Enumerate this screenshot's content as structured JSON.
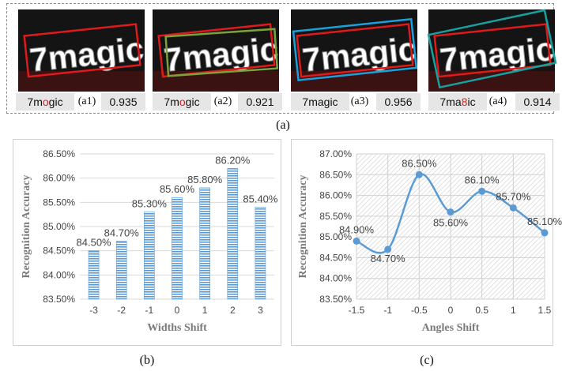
{
  "top_panel": {
    "items": [
      {
        "id": "(a1)",
        "pred_pre": "7m",
        "pred_err": "o",
        "pred_post": "gic",
        "score": "0.935"
      },
      {
        "id": "(a2)",
        "pred_pre": "7m",
        "pred_err": "o",
        "pred_post": "gic",
        "score": "0.921"
      },
      {
        "id": "(a3)",
        "pred_pre": "7magic",
        "pred_err": "",
        "pred_post": "",
        "score": "0.956"
      },
      {
        "id": "(a4)",
        "pred_pre": "7ma",
        "pred_err": "8",
        "pred_post": "ic",
        "score": "0.914"
      }
    ],
    "sign_text": "7magic",
    "caption": "(a)"
  },
  "captions": {
    "b": "(b)",
    "c": "(c)"
  },
  "chart_data": [
    {
      "type": "bar",
      "categories": [
        "-3",
        "-2",
        "-1",
        "0",
        "1",
        "2",
        "3"
      ],
      "values": [
        84.5,
        84.7,
        85.3,
        85.6,
        85.8,
        86.2,
        85.4
      ],
      "data_labels": [
        "84.50%",
        "84.70%",
        "85.30%",
        "85.60%",
        "85.80%",
        "86.20%",
        "85.40%"
      ],
      "xlabel": "Widths  Shift",
      "ylabel": "Recognition Accuracy",
      "ylim": [
        83.5,
        86.5
      ],
      "yticks": [
        "83.50%",
        "84.00%",
        "84.50%",
        "85.00%",
        "85.50%",
        "86.00%",
        "86.50%"
      ],
      "grid": true,
      "color": "#5b9bd5"
    },
    {
      "type": "line",
      "x": [
        "-1.5",
        "-1",
        "-0.5",
        "0",
        "0.5",
        "1",
        "1.5"
      ],
      "values": [
        84.9,
        84.7,
        86.5,
        85.6,
        86.1,
        85.7,
        85.1
      ],
      "data_labels": [
        "84.90%",
        "84.70%",
        "86.50%",
        "85.60%",
        "86.10%",
        "85.70%",
        "85.10%"
      ],
      "xlabel": "Angles  Shift",
      "ylabel": "Recognition Accuracy",
      "ylim": [
        83.5,
        87.0
      ],
      "yticks": [
        "83.50%",
        "84.00%",
        "84.50%",
        "85.00%",
        "85.50%",
        "86.00%",
        "86.50%",
        "87.00%"
      ],
      "grid": true,
      "smooth": true,
      "color": "#5b9bd5"
    }
  ]
}
